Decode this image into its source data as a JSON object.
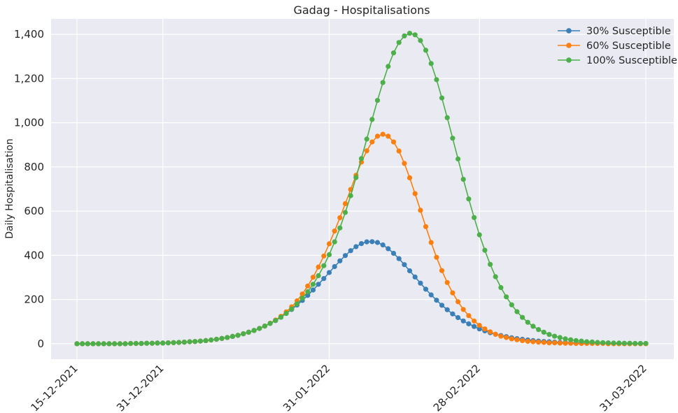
{
  "chart_data": {
    "type": "line",
    "title": "Gadag - Hospitalisations",
    "xlabel": "",
    "ylabel": "Daily Hospitalisation",
    "x_start": "15-12-2021",
    "x_end": "31-03-2022",
    "x_ticks": [
      "15-12-2021",
      "31-12-2021",
      "31-01-2022",
      "28-02-2022",
      "31-03-2022"
    ],
    "y_ticks": [
      0,
      200,
      400,
      600,
      800,
      1000,
      1200,
      1400
    ],
    "y_tick_labels": [
      "0",
      "200",
      "400",
      "600",
      "800",
      "1,000",
      "1,200",
      "1,400"
    ],
    "ylim": [
      -70,
      1470
    ],
    "grid": true,
    "legend_position": "top-right",
    "series": [
      {
        "name": "30% Susceptible",
        "color": "#3a7fb8",
        "values": [
          0,
          0,
          0,
          0,
          0,
          0,
          0,
          0,
          0,
          0,
          1,
          1,
          1,
          2,
          2,
          3,
          3,
          4,
          5,
          6,
          7,
          9,
          10,
          12,
          14,
          17,
          20,
          24,
          28,
          33,
          38,
          45,
          52,
          60,
          69,
          80,
          92,
          105,
          120,
          137,
          155,
          175,
          196,
          219,
          243,
          269,
          295,
          322,
          349,
          375,
          399,
          421,
          439,
          453,
          461,
          462,
          458,
          447,
          430,
          409,
          385,
          358,
          330,
          302,
          274,
          247,
          221,
          197,
          174,
          154,
          135,
          118,
          103,
          90,
          78,
          67,
          58,
          50,
          43,
          37,
          32,
          27,
          23,
          20,
          17,
          14,
          12,
          10,
          9,
          7,
          6,
          5,
          4,
          4,
          3,
          3,
          2,
          2,
          2,
          1,
          1,
          1,
          1,
          1,
          1,
          1,
          1
        ]
      },
      {
        "name": "60% Susceptible",
        "color": "#ff7f0e",
        "values": [
          0,
          0,
          0,
          0,
          0,
          0,
          0,
          0,
          0,
          0,
          1,
          1,
          1,
          2,
          2,
          3,
          3,
          4,
          5,
          6,
          7,
          9,
          10,
          12,
          14,
          17,
          20,
          24,
          28,
          33,
          38,
          45,
          52,
          60,
          69,
          80,
          93,
          107,
          124,
          144,
          167,
          194,
          225,
          261,
          301,
          347,
          397,
          452,
          510,
          570,
          634,
          698,
          762,
          822,
          873,
          913,
          939,
          948,
          939,
          913,
          872,
          816,
          751,
          679,
          604,
          530,
          458,
          391,
          331,
          277,
          230,
          190,
          155,
          127,
          103,
          83,
          67,
          54,
          43,
          34,
          28,
          22,
          18,
          14,
          11,
          9,
          7,
          6,
          4,
          4,
          3,
          2,
          2,
          1,
          1,
          1,
          1,
          1,
          1,
          0,
          0,
          0,
          0,
          0,
          0,
          0,
          0
        ]
      },
      {
        "name": "100% Susceptible",
        "color": "#4daf4a",
        "values": [
          0,
          0,
          0,
          0,
          0,
          0,
          0,
          0,
          0,
          0,
          1,
          1,
          1,
          2,
          2,
          3,
          3,
          4,
          5,
          6,
          7,
          9,
          10,
          12,
          14,
          17,
          20,
          24,
          28,
          33,
          38,
          45,
          52,
          60,
          69,
          80,
          92,
          105,
          120,
          137,
          157,
          180,
          206,
          235,
          269,
          308,
          353,
          403,
          461,
          524,
          594,
          670,
          752,
          838,
          926,
          1015,
          1101,
          1182,
          1255,
          1316,
          1363,
          1393,
          1405,
          1398,
          1372,
          1328,
          1268,
          1195,
          1112,
          1023,
          930,
          836,
          744,
          655,
          571,
          493,
          423,
          359,
          303,
          254,
          212,
          176,
          145,
          119,
          97,
          79,
          64,
          52,
          42,
          34,
          28,
          22,
          18,
          14,
          12,
          9,
          8,
          6,
          5,
          4,
          3,
          3,
          2,
          2,
          1,
          1,
          1
        ]
      }
    ]
  }
}
